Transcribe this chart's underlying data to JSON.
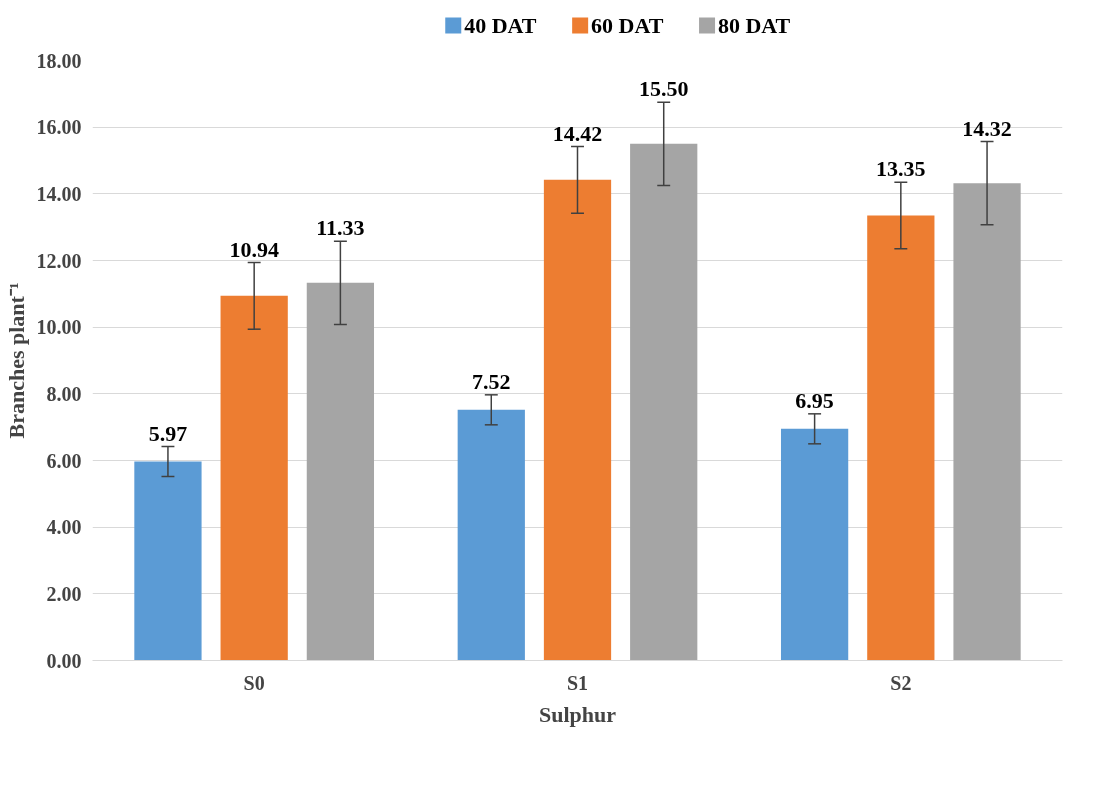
{
  "chart_data": {
    "type": "bar",
    "xlabel": "Sulphur",
    "ylabel": "Branches plant⁻¹",
    "categories": [
      "S0",
      "S1",
      "S2"
    ],
    "series": [
      {
        "name": "40 DAT",
        "color": "#5b9bd5",
        "values": [
          5.97,
          7.52,
          6.95
        ],
        "value_labels": [
          "5.97",
          "7.52",
          "6.95"
        ],
        "errors": [
          0.45,
          0.45,
          0.45
        ]
      },
      {
        "name": "60 DAT",
        "color": "#ed7d31",
        "values": [
          10.94,
          14.42,
          13.35
        ],
        "value_labels": [
          "10.94",
          "14.42",
          "13.35"
        ],
        "errors": [
          1.0,
          1.0,
          1.0
        ]
      },
      {
        "name": "80 DAT",
        "color": "#a5a5a5",
        "values": [
          11.33,
          15.5,
          14.32
        ],
        "value_labels": [
          "11.33",
          "15.50",
          "14.32"
        ],
        "errors": [
          1.25,
          1.25,
          1.25
        ]
      }
    ],
    "ylim": [
      0,
      18
    ],
    "yticks": [
      {
        "value": 0,
        "label": "0.00"
      },
      {
        "value": 2,
        "label": "2.00"
      },
      {
        "value": 4,
        "label": "4.00"
      },
      {
        "value": 6,
        "label": "6.00"
      },
      {
        "value": 8,
        "label": "8.00"
      },
      {
        "value": 10,
        "label": "10.00"
      },
      {
        "value": 12,
        "label": "12.00"
      },
      {
        "value": 14,
        "label": "14.00"
      },
      {
        "value": 16,
        "label": "16.00"
      },
      {
        "value": 18,
        "label": "18.00"
      }
    ],
    "grid": "y",
    "legend": "top"
  }
}
